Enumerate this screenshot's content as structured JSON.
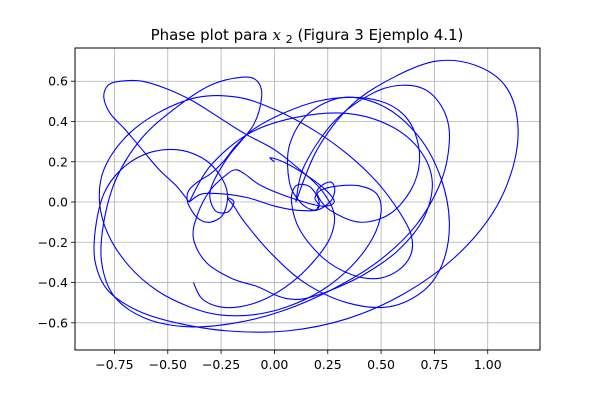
{
  "chart_data": {
    "type": "line",
    "title": {
      "prefix": "Phase plot para ",
      "var": "x",
      "sub": "2",
      "suffix": " (Figura 3 Ejemplo 4.1)"
    },
    "xlabel": "",
    "ylabel": "",
    "xlim": [
      -0.935,
      1.245
    ],
    "ylim": [
      -0.735,
      0.765
    ],
    "xticks": [
      -0.75,
      -0.5,
      -0.25,
      0.0,
      0.25,
      0.5,
      0.75,
      1.0
    ],
    "xtick_labels": [
      "−0.75",
      "−0.50",
      "−0.25",
      "0.00",
      "0.25",
      "0.50",
      "0.75",
      "1.00"
    ],
    "yticks": [
      -0.6,
      -0.4,
      -0.2,
      0.0,
      0.2,
      0.4,
      0.6
    ],
    "ytick_labels": [
      "−0.6",
      "−0.4",
      "−0.2",
      "0.0",
      "0.2",
      "0.4",
      "0.6"
    ],
    "grid": true,
    "legend": "none",
    "line_color": "#0000ff",
    "series": [
      {
        "x": [
          0.1,
          0.14,
          0.28,
          0.46,
          0.6,
          0.72,
          0.8,
          0.82,
          0.78,
          0.66,
          0.48,
          0.26,
          0.04,
          -0.18,
          -0.4,
          -0.6,
          -0.75,
          -0.81,
          -0.8,
          -0.74,
          -0.62,
          -0.46,
          -0.3,
          -0.15,
          -0.08,
          -0.06,
          -0.1,
          -0.22,
          -0.3,
          -0.28,
          -0.22,
          -0.19,
          -0.22,
          -0.19,
          -0.14,
          -0.02,
          0.14,
          0.34,
          0.54,
          0.7,
          0.79,
          0.82,
          0.78,
          0.68,
          0.52,
          0.33,
          0.16,
          0.07,
          0.07,
          0.12,
          0.18,
          0.21,
          0.19,
          0.22,
          0.3,
          0.4,
          0.48,
          0.5,
          0.46,
          0.36,
          0.22,
          0.06,
          -0.1,
          -0.26,
          -0.4,
          -0.55,
          -0.68,
          -0.78,
          -0.82,
          -0.8,
          -0.7,
          -0.55,
          -0.36,
          -0.17,
          0.0,
          0.18,
          0.34,
          0.48,
          0.58,
          0.64,
          0.64,
          0.58,
          0.48,
          0.36,
          0.23,
          0.12,
          0.08,
          0.1,
          0.16,
          0.2,
          0.21,
          0.2
        ],
        "y": [
          0.0,
          0.18,
          0.4,
          0.54,
          0.58,
          0.55,
          0.44,
          0.3,
          0.1,
          -0.12,
          -0.3,
          -0.44,
          -0.54,
          -0.6,
          -0.62,
          -0.58,
          -0.47,
          -0.3,
          -0.1,
          0.12,
          0.32,
          0.47,
          0.58,
          0.62,
          0.6,
          0.52,
          0.38,
          0.22,
          0.06,
          -0.04,
          -0.05,
          0.0,
          0.02,
          -0.02,
          -0.1,
          -0.25,
          -0.4,
          -0.5,
          -0.52,
          -0.44,
          -0.3,
          -0.1,
          0.12,
          0.32,
          0.47,
          0.52,
          0.44,
          0.28,
          0.1,
          0.0,
          -0.04,
          -0.02,
          0.02,
          0.06,
          0.08,
          0.08,
          0.04,
          -0.05,
          -0.18,
          -0.32,
          -0.44,
          -0.52,
          -0.56,
          -0.56,
          -0.52,
          -0.44,
          -0.32,
          -0.16,
          0.0,
          0.16,
          0.32,
          0.44,
          0.52,
          0.52,
          0.46,
          0.36,
          0.24,
          0.1,
          -0.04,
          -0.16,
          -0.26,
          -0.34,
          -0.38,
          -0.36,
          -0.28,
          -0.14,
          0.0,
          0.08,
          0.08,
          0.03,
          -0.01,
          -0.03
        ]
      },
      {
        "x": [
          0.1,
          0.2,
          0.36,
          0.56,
          0.76,
          0.94,
          1.08,
          1.14,
          1.12,
          1.02,
          0.84,
          0.6,
          0.34,
          0.06,
          -0.22,
          -0.46,
          -0.64,
          -0.78,
          -0.84,
          -0.84,
          -0.8,
          -0.72,
          -0.6,
          -0.46,
          -0.34,
          -0.26,
          -0.22,
          -0.24,
          -0.3,
          -0.36,
          -0.4,
          -0.41,
          -0.4,
          -0.36,
          -0.3,
          -0.24,
          -0.18,
          -0.1,
          0.04,
          0.2,
          0.36,
          0.5,
          0.6,
          0.66,
          0.68,
          0.64,
          0.54,
          0.4,
          0.26,
          0.2,
          0.22,
          0.26,
          0.28,
          0.28,
          0.26,
          0.2,
          0.1,
          0.0,
          -0.12,
          -0.24,
          -0.34,
          -0.4
        ],
        "y": [
          0.0,
          0.26,
          0.48,
          0.62,
          0.7,
          0.68,
          0.58,
          0.4,
          0.18,
          -0.06,
          -0.28,
          -0.46,
          -0.58,
          -0.64,
          -0.64,
          -0.6,
          -0.54,
          -0.44,
          -0.3,
          -0.14,
          0.04,
          0.16,
          0.24,
          0.26,
          0.22,
          0.14,
          0.04,
          -0.06,
          -0.1,
          -0.08,
          -0.02,
          0.02,
          0.06,
          0.1,
          0.14,
          0.2,
          0.28,
          0.36,
          0.44,
          0.5,
          0.52,
          0.5,
          0.44,
          0.34,
          0.2,
          0.06,
          -0.06,
          -0.1,
          -0.04,
          0.04,
          0.08,
          0.1,
          0.08,
          0.04,
          0.0,
          -0.04,
          -0.04,
          -0.02,
          0.02,
          0.04,
          0.04,
          0.0
        ]
      },
      {
        "x": [
          -0.4,
          -0.3,
          -0.12,
          0.1,
          0.34,
          0.54,
          0.68,
          0.74,
          0.7,
          0.58,
          0.42,
          0.26,
          0.14,
          0.06,
          0.0,
          -0.08,
          -0.2,
          -0.32,
          -0.38,
          -0.36,
          -0.3,
          -0.22,
          -0.18,
          -0.14,
          -0.06,
          0.08,
          0.22,
          0.28,
          0.24,
          0.14,
          0.04,
          -0.02,
          0.0
        ],
        "y": [
          0.0,
          0.18,
          0.34,
          0.42,
          0.44,
          0.38,
          0.26,
          0.1,
          -0.08,
          -0.24,
          -0.36,
          -0.44,
          -0.48,
          -0.48,
          -0.46,
          -0.42,
          -0.38,
          -0.3,
          -0.18,
          -0.06,
          0.06,
          0.14,
          0.16,
          0.14,
          0.08,
          0.02,
          -0.02,
          0.0,
          0.06,
          0.14,
          0.2,
          0.22,
          0.2
        ]
      },
      {
        "x": [
          -0.4,
          -0.46,
          -0.54,
          -0.62,
          -0.7,
          -0.77,
          -0.8,
          -0.78,
          -0.72,
          -0.62,
          -0.5,
          -0.38,
          -0.26,
          -0.14,
          0.0,
          0.12,
          0.22,
          0.28,
          0.26,
          0.18,
          0.08,
          -0.04,
          -0.16,
          -0.26,
          -0.34,
          -0.38
        ],
        "y": [
          0.0,
          0.08,
          0.16,
          0.26,
          0.36,
          0.44,
          0.52,
          0.58,
          0.6,
          0.6,
          0.56,
          0.5,
          0.42,
          0.34,
          0.26,
          0.16,
          0.06,
          -0.06,
          -0.18,
          -0.3,
          -0.4,
          -0.48,
          -0.52,
          -0.52,
          -0.48,
          -0.4
        ]
      }
    ]
  }
}
